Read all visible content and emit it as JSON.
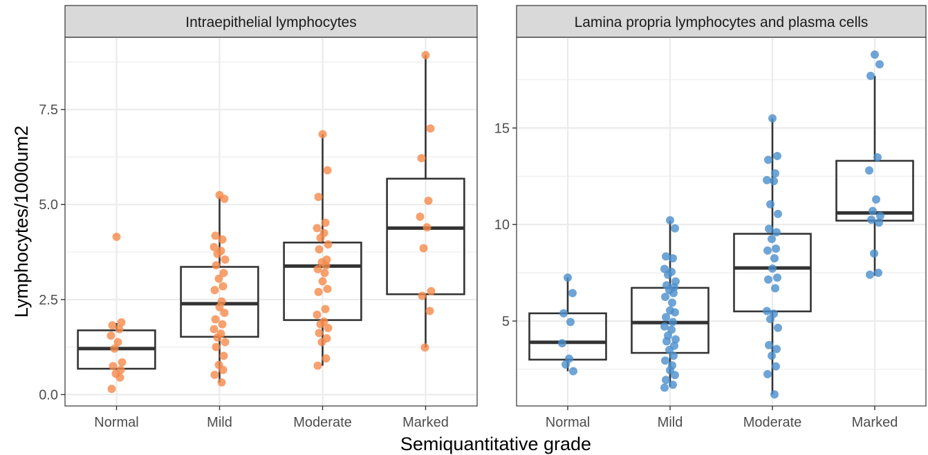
{
  "chart_data": {
    "type": "box",
    "xlabel": "Semiquantitative grade",
    "ylabel": "Lymphocytes/1000um2",
    "categories": [
      "Normal",
      "Mild",
      "Moderate",
      "Marked"
    ],
    "grid": true,
    "legend": "none",
    "panels": [
      {
        "title": "Intraepithelial lymphocytes",
        "color": "#F58A4B",
        "ylim": [
          -0.3,
          9.4
        ],
        "yticks": [
          0,
          2.5,
          5,
          7.5
        ],
        "ytick_labels": [
          "0.0",
          "2.5",
          "5.0",
          "7.5"
        ],
        "boxes": [
          {
            "category": "Normal",
            "min": 0.65,
            "q1": 0.68,
            "median": 1.21,
            "q3": 1.69,
            "max": 1.88
          },
          {
            "category": "Mild",
            "min": 0.32,
            "q1": 1.52,
            "median": 2.39,
            "q3": 3.36,
            "max": 5.2
          },
          {
            "category": "Moderate",
            "min": 0.76,
            "q1": 1.96,
            "median": 3.38,
            "q3": 4.0,
            "max": 6.85
          },
          {
            "category": "Marked",
            "min": 1.24,
            "q1": 2.64,
            "median": 4.38,
            "q3": 5.68,
            "max": 8.93
          }
        ],
        "points": [
          {
            "category": "Normal",
            "values": [
              4.15,
              1.9,
              1.82,
              1.72,
              1.55,
              1.38,
              1.21,
              0.85,
              0.75,
              0.65,
              0.55,
              0.45,
              0.15
            ]
          },
          {
            "category": "Mild",
            "values": [
              5.25,
              5.15,
              4.18,
              4.08,
              3.88,
              3.78,
              3.7,
              3.55,
              3.4,
              3.2,
              3.05,
              2.85,
              2.75,
              2.45,
              2.3,
              2.15,
              1.98,
              1.85,
              1.72,
              1.6,
              1.5,
              1.38,
              1.25,
              1.02,
              0.78,
              0.65,
              0.52,
              0.32
            ]
          },
          {
            "category": "Moderate",
            "values": [
              6.85,
              5.9,
              5.2,
              4.52,
              4.38,
              4.25,
              4.12,
              3.95,
              3.82,
              3.55,
              3.48,
              3.4,
              3.3,
              3.2,
              2.98,
              2.78,
              2.7,
              2.25,
              2.1,
              1.92,
              1.85,
              1.75,
              1.62,
              1.48,
              1.38,
              0.95,
              0.76
            ]
          },
          {
            "category": "Marked",
            "values": [
              8.93,
              7.0,
              6.22,
              5.1,
              4.68,
              4.4,
              3.85,
              2.72,
              2.6,
              2.2,
              1.24
            ]
          }
        ]
      },
      {
        "title": "Lamina propria lymphocytes and plasma cells",
        "color": "#4A8FCC",
        "ylim": [
          0.6,
          19.7
        ],
        "yticks": [
          5,
          10,
          15
        ],
        "ytick_labels": [
          "5",
          "10",
          "15"
        ],
        "boxes": [
          {
            "category": "Normal",
            "min": 2.4,
            "q1": 3.0,
            "median": 3.9,
            "q3": 5.4,
            "max": 7.25
          },
          {
            "category": "Mild",
            "min": 1.6,
            "q1": 3.35,
            "median": 4.92,
            "q3": 6.72,
            "max": 10.2
          },
          {
            "category": "Moderate",
            "min": 1.2,
            "q1": 5.5,
            "median": 7.75,
            "q3": 9.52,
            "max": 15.5
          },
          {
            "category": "Marked",
            "min": 7.35,
            "q1": 10.2,
            "median": 10.6,
            "q3": 13.3,
            "max": 17.7
          }
        ],
        "points": [
          {
            "category": "Normal",
            "values": [
              7.25,
              6.45,
              5.4,
              4.95,
              3.85,
              3.05,
              2.75,
              2.4
            ]
          },
          {
            "category": "Mild",
            "values": [
              10.22,
              9.8,
              8.35,
              8.25,
              7.7,
              7.55,
              7.4,
              7.05,
              6.85,
              6.75,
              6.6,
              6.45,
              6.25,
              5.95,
              5.55,
              5.45,
              5.2,
              4.95,
              4.72,
              4.55,
              4.25,
              4.05,
              3.95,
              3.72,
              3.5,
              3.2,
              2.95,
              2.7,
              2.45,
              2.2,
              1.95,
              1.7,
              1.55
            ]
          },
          {
            "category": "Moderate",
            "values": [
              15.5,
              13.55,
              13.35,
              12.65,
              12.3,
              12.25,
              11.05,
              10.55,
              9.78,
              9.6,
              9.25,
              8.75,
              8.65,
              8.25,
              7.72,
              7.25,
              7.15,
              6.7,
              5.52,
              5.38,
              5.1,
              4.65,
              3.75,
              3.55,
              3.2,
              2.65,
              2.25,
              1.2
            ]
          },
          {
            "category": "Marked",
            "values": [
              18.8,
              18.3,
              17.7,
              13.48,
              12.8,
              11.3,
              10.7,
              10.45,
              10.25,
              10.1,
              8.5,
              7.5,
              7.4
            ]
          }
        ]
      }
    ]
  }
}
